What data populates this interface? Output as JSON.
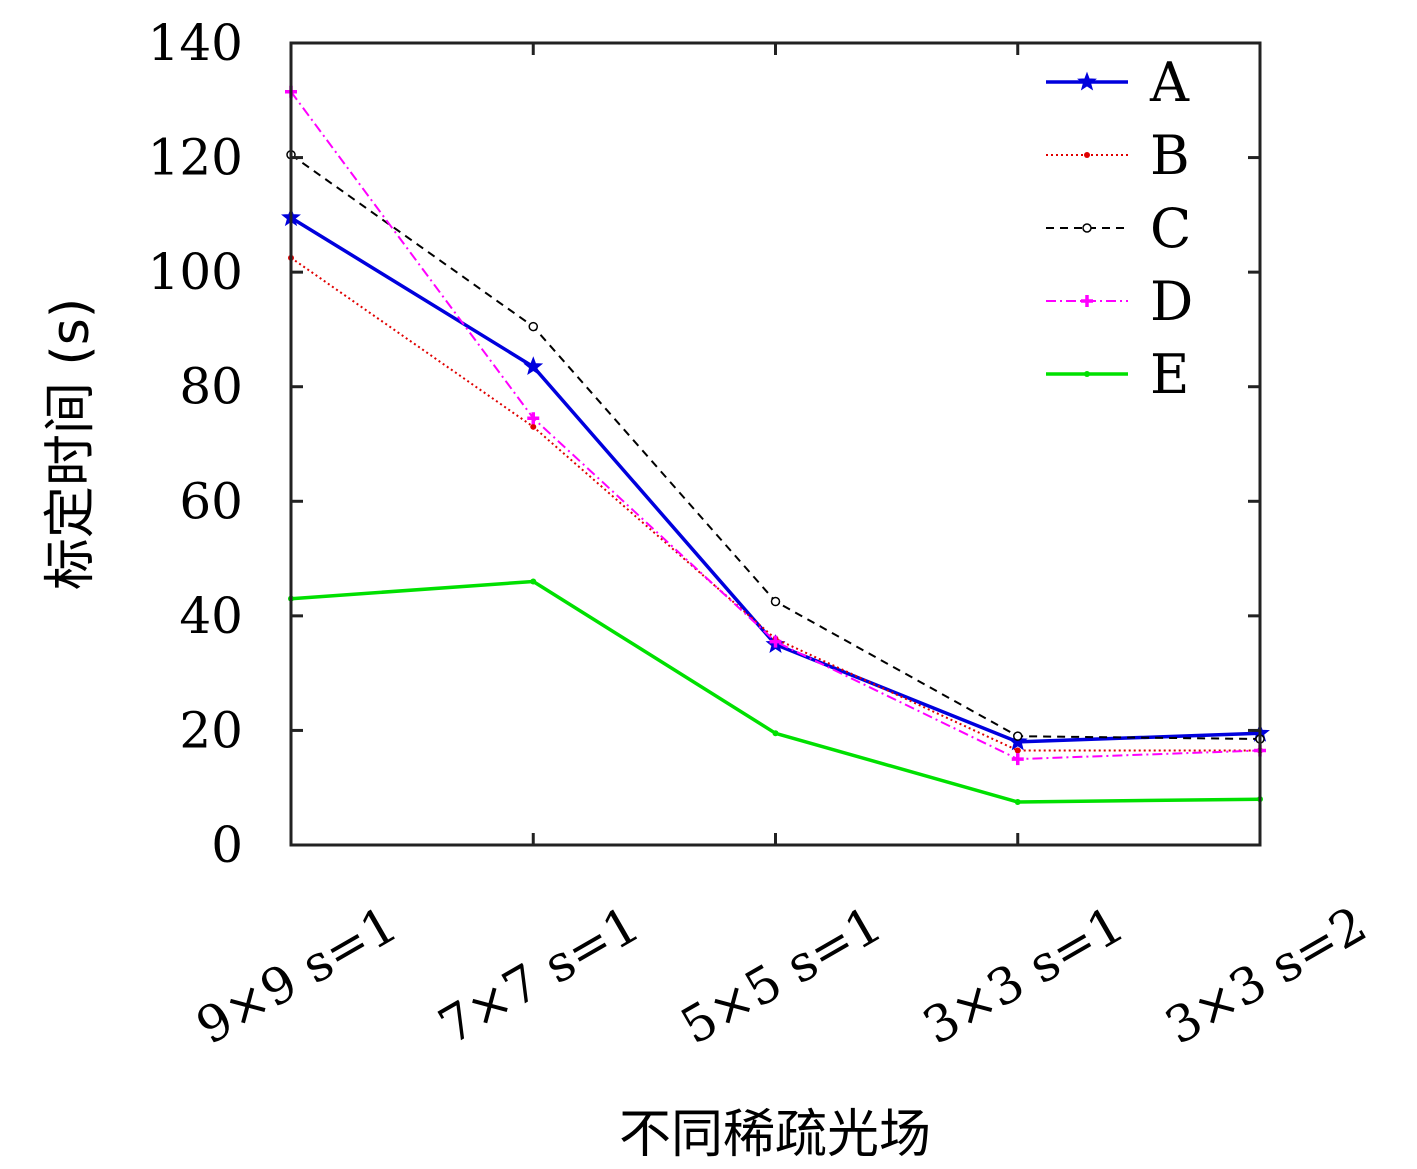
{
  "chart_data": {
    "type": "line",
    "xlabel": "不同稀疏光场",
    "ylabel": "标定时间 (s)",
    "categories": [
      "9×9 s=1",
      "7×7 s=1",
      "5×5 s=1",
      "3×3 s=1",
      "3×3 s=2"
    ],
    "ylim": [
      0,
      140
    ],
    "yticks": [
      0,
      20,
      40,
      60,
      80,
      100,
      120,
      140
    ],
    "grid": false,
    "legend_position": "top-right",
    "series": [
      {
        "name": "A",
        "values": [
          109.5,
          83.5,
          35.0,
          18.0,
          19.5
        ],
        "color": "#0000dd",
        "style": "solid",
        "marker": "star"
      },
      {
        "name": "B",
        "values": [
          102.5,
          73.0,
          36.0,
          16.5,
          16.5
        ],
        "color": "#e00000",
        "style": "dotted",
        "marker": "dot"
      },
      {
        "name": "C",
        "values": [
          120.5,
          90.5,
          42.5,
          19.0,
          18.5
        ],
        "color": "#000000",
        "style": "dashed",
        "marker": "circle"
      },
      {
        "name": "D",
        "values": [
          131.5,
          74.5,
          35.5,
          15.0,
          16.5
        ],
        "color": "#ff00ff",
        "style": "dashdot",
        "marker": "plus"
      },
      {
        "name": "E",
        "values": [
          43.0,
          46.0,
          19.5,
          7.5,
          8.0
        ],
        "color": "#00e000",
        "style": "solid",
        "marker": "dot"
      }
    ]
  }
}
